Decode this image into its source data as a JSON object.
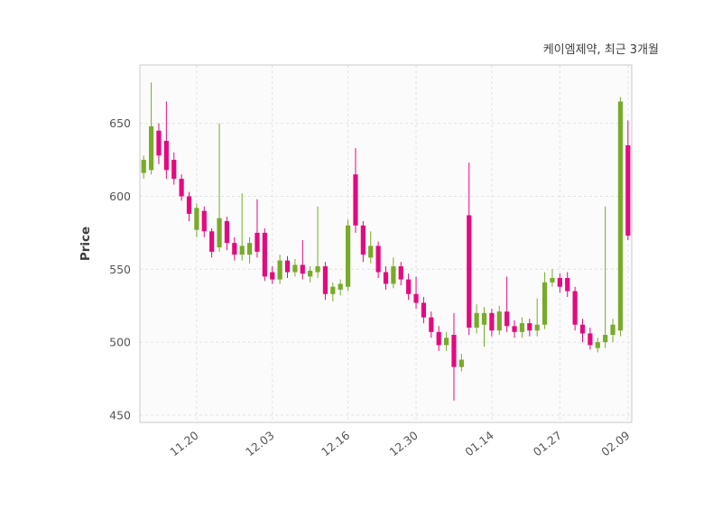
{
  "chart_data": {
    "type": "candlestick",
    "title": "케이엠제약, 최근 3개월",
    "ylabel": "Price",
    "xlabel": "",
    "ylim": [
      445,
      690
    ],
    "yticks": [
      450,
      500,
      550,
      600,
      650
    ],
    "xticks": [
      {
        "label": "11.20",
        "index": 7
      },
      {
        "label": "12.03",
        "index": 17
      },
      {
        "label": "12.16",
        "index": 27
      },
      {
        "label": "12.30",
        "index": 36
      },
      {
        "label": "01.14",
        "index": 46
      },
      {
        "label": "01.27",
        "index": 55
      },
      {
        "label": "02.09",
        "index": 64
      }
    ],
    "up_color": "#77ab2a",
    "down_color": "#e5097f",
    "grid": true,
    "legend": "none",
    "candles": [
      [
        616,
        628,
        612,
        625
      ],
      [
        618,
        678,
        615,
        648
      ],
      [
        645,
        650,
        622,
        628
      ],
      [
        638,
        665,
        612,
        618
      ],
      [
        625,
        630,
        608,
        612
      ],
      [
        612,
        615,
        597,
        600
      ],
      [
        600,
        603,
        583,
        588
      ],
      [
        577,
        595,
        572,
        592
      ],
      [
        590,
        593,
        572,
        576
      ],
      [
        576,
        578,
        558,
        562
      ],
      [
        565,
        650,
        562,
        585
      ],
      [
        583,
        586,
        563,
        568
      ],
      [
        568,
        572,
        556,
        560
      ],
      [
        560,
        602,
        556,
        566
      ],
      [
        560,
        572,
        554,
        568
      ],
      [
        575,
        598,
        558,
        562
      ],
      [
        575,
        578,
        542,
        545
      ],
      [
        548,
        552,
        540,
        543
      ],
      [
        543,
        560,
        540,
        556
      ],
      [
        556,
        559,
        544,
        548
      ],
      [
        548,
        557,
        545,
        553
      ],
      [
        553,
        570,
        543,
        547
      ],
      [
        545,
        552,
        541,
        549
      ],
      [
        548,
        593,
        544,
        552
      ],
      [
        552,
        555,
        529,
        533
      ],
      [
        533,
        541,
        528,
        538
      ],
      [
        536,
        543,
        532,
        540
      ],
      [
        538,
        584,
        535,
        580
      ],
      [
        615,
        633,
        575,
        580
      ],
      [
        580,
        583,
        555,
        560
      ],
      [
        558,
        576,
        554,
        566
      ],
      [
        566,
        569,
        544,
        548
      ],
      [
        548,
        552,
        536,
        540
      ],
      [
        540,
        558,
        537,
        552
      ],
      [
        552,
        555,
        539,
        543
      ],
      [
        543,
        547,
        529,
        533
      ],
      [
        533,
        545,
        523,
        527
      ],
      [
        527,
        531,
        513,
        517
      ],
      [
        517,
        521,
        503,
        507
      ],
      [
        507,
        511,
        494,
        498
      ],
      [
        498,
        507,
        494,
        503
      ],
      [
        505,
        520,
        460,
        483
      ],
      [
        483,
        492,
        480,
        488
      ],
      [
        587,
        623,
        505,
        510
      ],
      [
        510,
        526,
        506,
        520
      ],
      [
        512,
        524,
        497,
        520
      ],
      [
        520,
        523,
        504,
        508
      ],
      [
        508,
        525,
        505,
        521
      ],
      [
        521,
        545,
        507,
        511
      ],
      [
        511,
        515,
        503,
        507
      ],
      [
        507,
        517,
        503,
        513
      ],
      [
        513,
        516,
        504,
        508
      ],
      [
        508,
        530,
        504,
        512
      ],
      [
        512,
        548,
        509,
        541
      ],
      [
        541,
        550,
        538,
        544
      ],
      [
        544,
        547,
        534,
        538
      ],
      [
        544,
        548,
        531,
        535
      ],
      [
        535,
        538,
        508,
        512
      ],
      [
        512,
        516,
        500,
        506
      ],
      [
        506,
        510,
        495,
        498
      ],
      [
        496,
        503,
        493,
        500
      ],
      [
        500,
        593,
        496,
        505
      ],
      [
        505,
        516,
        500,
        512
      ],
      [
        508,
        668,
        504,
        665
      ],
      [
        635,
        652,
        570,
        573
      ]
    ]
  }
}
